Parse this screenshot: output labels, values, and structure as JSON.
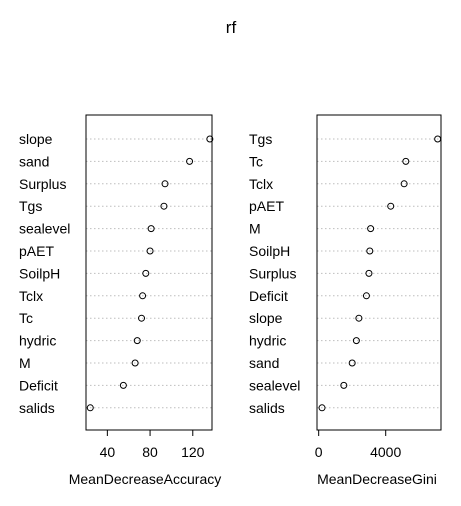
{
  "chart_data": [
    {
      "type": "scatter",
      "title": "rf",
      "xlabel": "MeanDecreaseAccuracy",
      "ylabel": "",
      "xlim": [
        20,
        138
      ],
      "xticks": [
        40,
        80,
        120
      ],
      "grid": true,
      "categories": [
        "slope",
        "sand",
        "Surplus",
        "Tgs",
        "sealevel",
        "pAET",
        "SoilpH",
        "Tclx",
        "Tc",
        "hydric",
        "M",
        "Deficit",
        "salids"
      ],
      "values": [
        136,
        117,
        94,
        93,
        81,
        80,
        76,
        73,
        72,
        68,
        66,
        55,
        24
      ]
    },
    {
      "type": "scatter",
      "xlabel": "MeanDecreaseGini",
      "ylabel": "",
      "xlim": [
        -100,
        7300
      ],
      "xticks": [
        0,
        4000
      ],
      "grid": true,
      "categories": [
        "Tgs",
        "Tc",
        "Tclx",
        "pAET",
        "M",
        "SoilpH",
        "Surplus",
        "Deficit",
        "slope",
        "hydric",
        "sand",
        "sealevel",
        "salids"
      ],
      "values": [
        7100,
        5200,
        5100,
        4300,
        3100,
        3050,
        3000,
        2850,
        2400,
        2250,
        2000,
        1500,
        200
      ]
    }
  ]
}
